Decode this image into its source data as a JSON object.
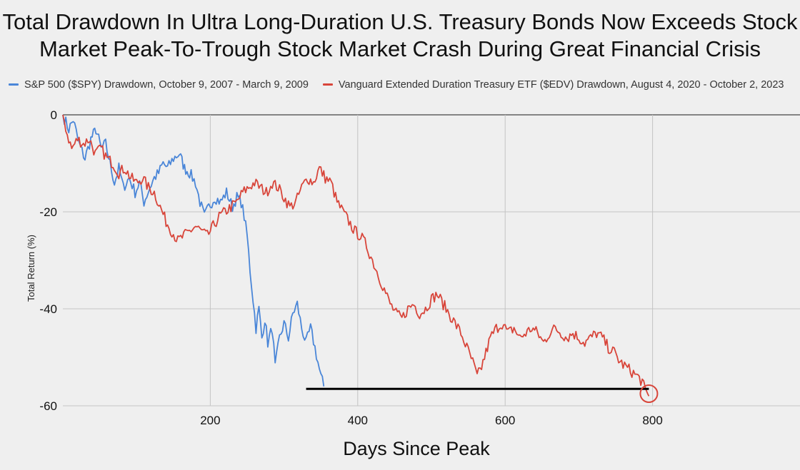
{
  "chart_data": {
    "type": "line",
    "title_lines": [
      "Total Drawdown In Ultra Long-Duration U.S. Treasury Bonds Now Exceeds Stock",
      "Market Peak-To-Trough Stock Market Crash During Great Financial Crisis"
    ],
    "xlabel": "Days Since Peak",
    "ylabel": "Total Return (%)",
    "xlim": [
      0,
      1000
    ],
    "ylim": [
      -60,
      0
    ],
    "x_ticks": [
      200,
      400,
      600,
      800
    ],
    "y_ticks": [
      0,
      -20,
      -40,
      -60
    ],
    "grid": "on",
    "legend_position": "top",
    "series": [
      {
        "name": "S&P 500 ($SPY) Drawdown, October 9, 2007 - March 9, 2009",
        "color": "#4a86d8",
        "points": [
          [
            0,
            0
          ],
          [
            8,
            -3
          ],
          [
            14,
            -1
          ],
          [
            22,
            -6
          ],
          [
            30,
            -9
          ],
          [
            38,
            -5
          ],
          [
            45,
            -3
          ],
          [
            52,
            -7
          ],
          [
            58,
            -6
          ],
          [
            64,
            -10
          ],
          [
            70,
            -14
          ],
          [
            76,
            -11
          ],
          [
            82,
            -15
          ],
          [
            90,
            -13
          ],
          [
            98,
            -16
          ],
          [
            104,
            -14
          ],
          [
            110,
            -18
          ],
          [
            118,
            -15
          ],
          [
            124,
            -13
          ],
          [
            130,
            -12
          ],
          [
            136,
            -10
          ],
          [
            142,
            -11
          ],
          [
            150,
            -9
          ],
          [
            158,
            -8
          ],
          [
            165,
            -11
          ],
          [
            172,
            -12
          ],
          [
            180,
            -14
          ],
          [
            186,
            -18
          ],
          [
            192,
            -21
          ],
          [
            198,
            -19
          ],
          [
            206,
            -17
          ],
          [
            214,
            -18
          ],
          [
            222,
            -16
          ],
          [
            230,
            -19
          ],
          [
            236,
            -17
          ],
          [
            242,
            -18
          ],
          [
            246,
            -21
          ],
          [
            250,
            -25
          ],
          [
            254,
            -32
          ],
          [
            258,
            -38
          ],
          [
            262,
            -44
          ],
          [
            266,
            -40
          ],
          [
            270,
            -46
          ],
          [
            274,
            -42
          ],
          [
            278,
            -47
          ],
          [
            284,
            -44
          ],
          [
            288,
            -52
          ],
          [
            294,
            -46
          ],
          [
            300,
            -43
          ],
          [
            306,
            -46
          ],
          [
            312,
            -41
          ],
          [
            318,
            -39
          ],
          [
            324,
            -44
          ],
          [
            330,
            -47
          ],
          [
            336,
            -44
          ],
          [
            342,
            -48
          ],
          [
            346,
            -51
          ],
          [
            350,
            -54
          ],
          [
            354,
            -56
          ]
        ]
      },
      {
        "name": "Vanguard Extended Duration Treasury ETF ($EDV) Drawdown, August 4, 2020 - October 2, 2023",
        "color": "#d8453a",
        "points": [
          [
            0,
            0
          ],
          [
            6,
            -4
          ],
          [
            12,
            -7
          ],
          [
            20,
            -5
          ],
          [
            28,
            -6
          ],
          [
            36,
            -5
          ],
          [
            44,
            -8
          ],
          [
            52,
            -7
          ],
          [
            60,
            -9
          ],
          [
            68,
            -10
          ],
          [
            76,
            -12
          ],
          [
            84,
            -11
          ],
          [
            92,
            -13
          ],
          [
            100,
            -14
          ],
          [
            108,
            -13
          ],
          [
            116,
            -15
          ],
          [
            124,
            -16
          ],
          [
            132,
            -19
          ],
          [
            140,
            -22
          ],
          [
            148,
            -24
          ],
          [
            156,
            -26
          ],
          [
            164,
            -25
          ],
          [
            172,
            -24
          ],
          [
            180,
            -23
          ],
          [
            188,
            -24
          ],
          [
            196,
            -25
          ],
          [
            204,
            -23
          ],
          [
            212,
            -21
          ],
          [
            220,
            -20
          ],
          [
            228,
            -19
          ],
          [
            236,
            -18
          ],
          [
            244,
            -16
          ],
          [
            252,
            -15
          ],
          [
            260,
            -14
          ],
          [
            268,
            -15
          ],
          [
            276,
            -16
          ],
          [
            284,
            -14
          ],
          [
            292,
            -15
          ],
          [
            300,
            -17
          ],
          [
            308,
            -19
          ],
          [
            316,
            -18
          ],
          [
            324,
            -15
          ],
          [
            332,
            -13
          ],
          [
            340,
            -14
          ],
          [
            348,
            -11
          ],
          [
            356,
            -13
          ],
          [
            364,
            -14
          ],
          [
            372,
            -18
          ],
          [
            380,
            -20
          ],
          [
            388,
            -22
          ],
          [
            396,
            -24
          ],
          [
            404,
            -25
          ],
          [
            412,
            -27
          ],
          [
            420,
            -30
          ],
          [
            428,
            -33
          ],
          [
            436,
            -36
          ],
          [
            444,
            -39
          ],
          [
            452,
            -41
          ],
          [
            460,
            -42
          ],
          [
            468,
            -40
          ],
          [
            476,
            -39
          ],
          [
            484,
            -41
          ],
          [
            492,
            -40
          ],
          [
            500,
            -38
          ],
          [
            508,
            -37
          ],
          [
            516,
            -39
          ],
          [
            524,
            -41
          ],
          [
            532,
            -43
          ],
          [
            540,
            -45
          ],
          [
            548,
            -48
          ],
          [
            556,
            -51
          ],
          [
            562,
            -54
          ],
          [
            568,
            -52
          ],
          [
            574,
            -49
          ],
          [
            580,
            -46
          ],
          [
            588,
            -44
          ],
          [
            596,
            -43
          ],
          [
            604,
            -45
          ],
          [
            612,
            -44
          ],
          [
            620,
            -46
          ],
          [
            628,
            -45
          ],
          [
            636,
            -44
          ],
          [
            644,
            -45
          ],
          [
            652,
            -47
          ],
          [
            660,
            -45
          ],
          [
            668,
            -44
          ],
          [
            676,
            -45
          ],
          [
            684,
            -46
          ],
          [
            692,
            -45
          ],
          [
            700,
            -46
          ],
          [
            708,
            -47
          ],
          [
            716,
            -46
          ],
          [
            724,
            -45
          ],
          [
            732,
            -46
          ],
          [
            740,
            -48
          ],
          [
            748,
            -49
          ],
          [
            756,
            -51
          ],
          [
            764,
            -52
          ],
          [
            772,
            -53
          ],
          [
            780,
            -54
          ],
          [
            786,
            -55
          ],
          [
            790,
            -57
          ],
          [
            795,
            -58
          ]
        ]
      }
    ],
    "annotations": {
      "horizontal_line": {
        "x_start": 330,
        "x_end": 795,
        "y": -56.5,
        "color": "#000000"
      },
      "circle_marker": {
        "x": 795,
        "y": -57.5,
        "color": "#d8453a"
      }
    }
  }
}
